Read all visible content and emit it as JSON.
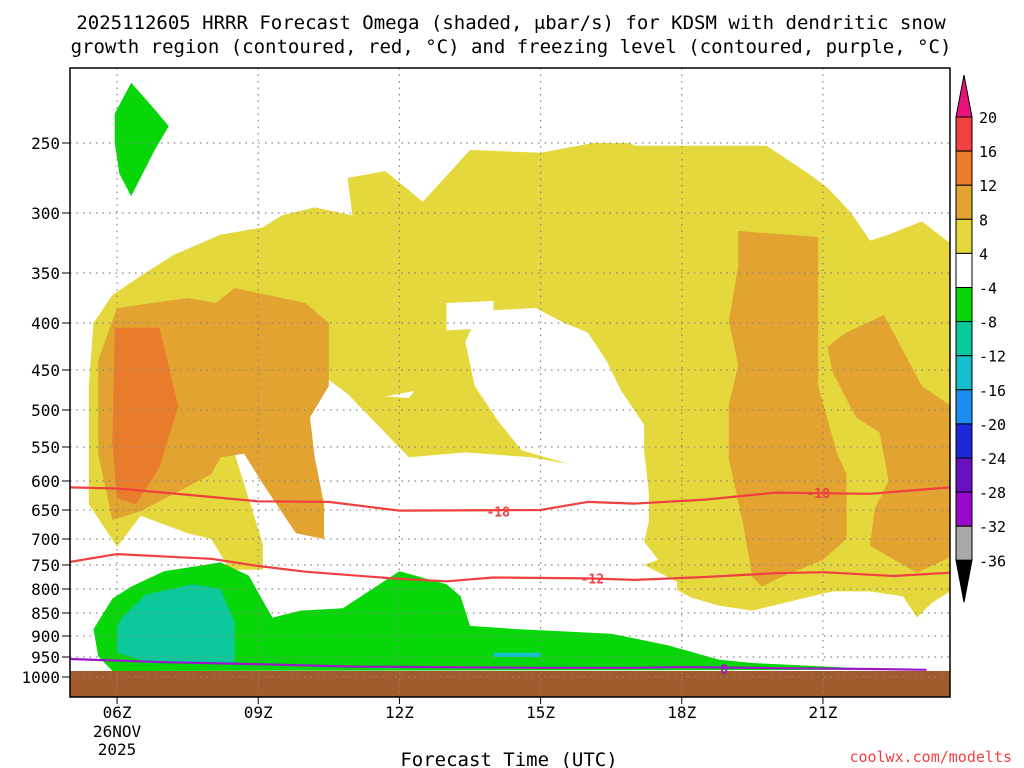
{
  "title": {
    "line1": "2025112605 HRRR Forecast Omega (shaded, μbar/s) for KDSM with dendritic snow",
    "line2": "growth region (contoured, red, °C) and freezing level (contoured, purple, °C)"
  },
  "credit": "coolwx.com/modelts",
  "colors": {
    "orange": "#ea7d2b",
    "dark_yellow": "#e2a330",
    "yellow": "#e4d83c",
    "green": "#07d608",
    "teal": "#0bc99b",
    "cyan": "#16bfcc",
    "ground": "#a05a2c",
    "dsgz_contour": "#f04040",
    "freezing_contour": "#9a18c8",
    "grid": "#888888"
  },
  "chart_data": {
    "type": "heatmap",
    "title": "2025112605 HRRR Forecast Omega (shaded, μbar/s) for KDSM with dendritic snow growth region (contoured, red, °C) and freezing level (contoured, purple, °C)",
    "xlabel": "Forecast Time (UTC)",
    "ylabel": "",
    "x_range_hours": [
      5,
      23.7
    ],
    "x_ticks": [
      {
        "hour": 6,
        "label": "06Z",
        "sublabels": [
          "26NOV",
          "2025"
        ]
      },
      {
        "hour": 9,
        "label": "09Z"
      },
      {
        "hour": 12,
        "label": "12Z"
      },
      {
        "hour": 15,
        "label": "15Z"
      },
      {
        "hour": 18,
        "label": "18Z"
      },
      {
        "hour": 21,
        "label": "21Z"
      }
    ],
    "y_axis": "pressure (hPa), inverted",
    "y_range": [
      1000,
      200
    ],
    "y_ticks": [
      250,
      300,
      350,
      400,
      450,
      500,
      550,
      600,
      650,
      700,
      750,
      800,
      850,
      900,
      950,
      1000
    ],
    "grid": true,
    "colorbar": {
      "levels": [
        -36,
        -32,
        -28,
        -24,
        -20,
        -16,
        -12,
        -8,
        -4,
        4,
        8,
        12,
        16,
        20
      ],
      "colors": [
        "#000000",
        "#a8a8a8",
        "#9a08cc",
        "#6a10c0",
        "#1c28d8",
        "#1a8cf0",
        "#16bfcc",
        "#0bc99b",
        "#07d608",
        "#ffffff",
        "#e4d83c",
        "#e2a330",
        "#ea7d2b",
        "#f04040",
        "#e8127a"
      ]
    },
    "regions": [
      {
        "name": "green",
        "points": [
          [
            5.95,
            229
          ],
          [
            6.3,
            207
          ],
          [
            6.8,
            226
          ],
          [
            7.1,
            238
          ],
          [
            6.8,
            255
          ],
          [
            6.3,
            288
          ],
          [
            6.05,
            272
          ],
          [
            5.95,
            250
          ]
        ]
      },
      {
        "name": "yellow",
        "points": [
          [
            5.4,
            470
          ],
          [
            5.5,
            400
          ],
          [
            5.9,
            372
          ],
          [
            6.5,
            353
          ],
          [
            7.2,
            335
          ],
          [
            8.2,
            318
          ],
          [
            9.1,
            312
          ],
          [
            9.5,
            302
          ],
          [
            10.2,
            296
          ],
          [
            11.0,
            302
          ],
          [
            10.9,
            275
          ],
          [
            11.7,
            270
          ],
          [
            12.5,
            292
          ],
          [
            13.5,
            255
          ],
          [
            15.0,
            257
          ],
          [
            16.1,
            250
          ],
          [
            16.9,
            250
          ],
          [
            17.0,
            252
          ],
          [
            19.8,
            252
          ],
          [
            20.7,
            272
          ],
          [
            21.1,
            282
          ],
          [
            21.6,
            300
          ],
          [
            22.0,
            323
          ],
          [
            22.4,
            318
          ],
          [
            23.1,
            307
          ],
          [
            23.7,
            325
          ],
          [
            23.7,
            805
          ],
          [
            23.3,
            830
          ],
          [
            23,
            860
          ],
          [
            22.7,
            815
          ],
          [
            22.0,
            805
          ],
          [
            21.2,
            805
          ],
          [
            19.5,
            845
          ],
          [
            18.8,
            835
          ],
          [
            18.2,
            818
          ],
          [
            17.9,
            802
          ],
          [
            17.9,
            785
          ],
          [
            17.2,
            750
          ],
          [
            17.5,
            740
          ],
          [
            17.2,
            705
          ],
          [
            17.3,
            670
          ],
          [
            17.3,
            620
          ],
          [
            17.2,
            555
          ],
          [
            17.2,
            520
          ],
          [
            16.7,
            475
          ],
          [
            16.4,
            440
          ],
          [
            16.0,
            410
          ],
          [
            15.5,
            400
          ],
          [
            14.9,
            385
          ],
          [
            13.7,
            388
          ],
          [
            13.4,
            420
          ],
          [
            13.6,
            470
          ],
          [
            14.1,
            515
          ],
          [
            14.6,
            555
          ],
          [
            15.6,
            575
          ],
          [
            14.8,
            565
          ],
          [
            13.4,
            558
          ],
          [
            12.2,
            565
          ],
          [
            10.9,
            480
          ],
          [
            12.2,
            485
          ],
          [
            12.9,
            435
          ],
          [
            12.9,
            470
          ],
          [
            11.5,
            485
          ],
          [
            10.9,
            480
          ],
          [
            10.4,
            458
          ],
          [
            9.7,
            445
          ],
          [
            8.8,
            430
          ],
          [
            8.5,
            480
          ],
          [
            8.5,
            560
          ],
          [
            9.1,
            710
          ],
          [
            9.1,
            760
          ],
          [
            8.4,
            760
          ],
          [
            8.0,
            700
          ],
          [
            7.5,
            690
          ],
          [
            6.5,
            660
          ],
          [
            6.0,
            715
          ],
          [
            5.4,
            640
          ]
        ]
      },
      {
        "name": "white_hole",
        "points": [
          [
            13.0,
            380
          ],
          [
            14.0,
            378
          ],
          [
            14.0,
            405
          ],
          [
            13.0,
            408
          ]
        ]
      },
      {
        "name": "dark_yellow",
        "points": [
          [
            5.6,
            440
          ],
          [
            6.0,
            385
          ],
          [
            7.5,
            375
          ],
          [
            8.1,
            380
          ],
          [
            8.5,
            365
          ],
          [
            10.0,
            380
          ],
          [
            10.5,
            400
          ],
          [
            10.5,
            470
          ],
          [
            10.1,
            510
          ],
          [
            10.2,
            565
          ],
          [
            10.4,
            640
          ],
          [
            10.4,
            700
          ],
          [
            9.8,
            690
          ],
          [
            9.1,
            605
          ],
          [
            8.7,
            560
          ],
          [
            8.2,
            565
          ],
          [
            8.0,
            590
          ],
          [
            6.5,
            652
          ],
          [
            5.9,
            667
          ],
          [
            5.6,
            560
          ]
        ]
      },
      {
        "name": "orange",
        "points": [
          [
            5.95,
            405
          ],
          [
            6.9,
            405
          ],
          [
            7.3,
            495
          ],
          [
            6.9,
            580
          ],
          [
            6.4,
            640
          ],
          [
            6.0,
            630
          ],
          [
            5.9,
            545
          ]
        ]
      },
      {
        "name": "dark_yellow",
        "points": [
          [
            19.2,
            315
          ],
          [
            20.9,
            320
          ],
          [
            20.9,
            470
          ],
          [
            21.3,
            560
          ],
          [
            21.5,
            590
          ],
          [
            21.5,
            700
          ],
          [
            21.0,
            740
          ],
          [
            20.0,
            780
          ],
          [
            19.7,
            795
          ],
          [
            19.5,
            775
          ],
          [
            19.3,
            672
          ],
          [
            19.0,
            567
          ],
          [
            19.0,
            493
          ],
          [
            19.2,
            445
          ],
          [
            19.0,
            398
          ],
          [
            19.2,
            345
          ]
        ]
      },
      {
        "name": "dark_yellow",
        "points": [
          [
            21.1,
            425
          ],
          [
            21.5,
            410
          ],
          [
            22.3,
            392
          ],
          [
            23.1,
            470
          ],
          [
            23.7,
            494
          ],
          [
            23.7,
            735
          ],
          [
            23.0,
            766
          ],
          [
            22.0,
            713
          ],
          [
            22.1,
            648
          ],
          [
            22.4,
            600
          ],
          [
            22.2,
            530
          ],
          [
            21.7,
            510
          ],
          [
            21.2,
            452
          ]
        ]
      },
      {
        "name": "green",
        "points": [
          [
            5.9,
            820
          ],
          [
            6.3,
            795
          ],
          [
            7.0,
            763
          ],
          [
            8.2,
            745
          ],
          [
            8.8,
            772
          ],
          [
            9.3,
            860
          ],
          [
            9.9,
            845
          ],
          [
            10.8,
            840
          ],
          [
            11.5,
            795
          ],
          [
            12.0,
            763
          ],
          [
            13.0,
            790
          ],
          [
            13.3,
            815
          ],
          [
            13.5,
            878
          ],
          [
            14.5,
            885
          ],
          [
            16.5,
            895
          ],
          [
            17.7,
            922
          ],
          [
            18.8,
            957
          ],
          [
            19.5,
            965
          ],
          [
            22.5,
            982
          ],
          [
            5.9,
            985
          ],
          [
            5.6,
            948
          ],
          [
            5.5,
            885
          ]
        ]
      },
      {
        "name": "teal",
        "points": [
          [
            6.0,
            880
          ],
          [
            6.1,
            860
          ],
          [
            6.6,
            812
          ],
          [
            7.6,
            790
          ],
          [
            8.2,
            800
          ],
          [
            8.5,
            870
          ],
          [
            8.5,
            965
          ],
          [
            6.7,
            965
          ],
          [
            6.0,
            940
          ]
        ]
      },
      {
        "name": "cyan",
        "points": [
          [
            14.0,
            940
          ],
          [
            15.0,
            940
          ],
          [
            15.0,
            950
          ],
          [
            14.0,
            950
          ]
        ]
      }
    ],
    "contours": [
      {
        "name": "dsgz -18",
        "label": "-18",
        "label_positions": [
          [
            14.1,
            653
          ],
          [
            20.9,
            621
          ]
        ],
        "points": [
          [
            5.0,
            611
          ],
          [
            6.0,
            613
          ],
          [
            7.0,
            620
          ],
          [
            9.0,
            635
          ],
          [
            10.5,
            636
          ],
          [
            12.0,
            651
          ],
          [
            15.0,
            650
          ],
          [
            16.0,
            636
          ],
          [
            17.0,
            639
          ],
          [
            18.5,
            632
          ],
          [
            20.0,
            620
          ],
          [
            22.0,
            622
          ],
          [
            23.7,
            611
          ]
        ]
      },
      {
        "name": "dsgz -12",
        "label": "-12",
        "label_positions": [
          [
            16.1,
            778
          ]
        ],
        "points": [
          [
            5.0,
            744
          ],
          [
            6.0,
            729
          ],
          [
            8.0,
            738
          ],
          [
            9.0,
            752
          ],
          [
            10.0,
            764
          ],
          [
            12.0,
            779
          ],
          [
            13.0,
            784
          ],
          [
            14.0,
            776
          ],
          [
            16.0,
            778
          ],
          [
            17.0,
            781
          ],
          [
            18.5,
            775
          ],
          [
            20.0,
            767
          ],
          [
            21.0,
            765
          ],
          [
            22.5,
            773
          ],
          [
            23.7,
            766
          ]
        ]
      },
      {
        "name": "freezing level 0",
        "label": "0",
        "label_positions": [
          [
            18.9,
            980
          ]
        ],
        "points": [
          [
            5.0,
            955
          ],
          [
            7.0,
            963
          ],
          [
            9.0,
            968
          ],
          [
            11.0,
            974
          ],
          [
            15.0,
            977
          ],
          [
            17.0,
            977
          ],
          [
            18.0,
            975
          ],
          [
            20.0,
            978
          ],
          [
            22.0,
            980
          ],
          [
            23.2,
            982
          ]
        ]
      }
    ]
  }
}
